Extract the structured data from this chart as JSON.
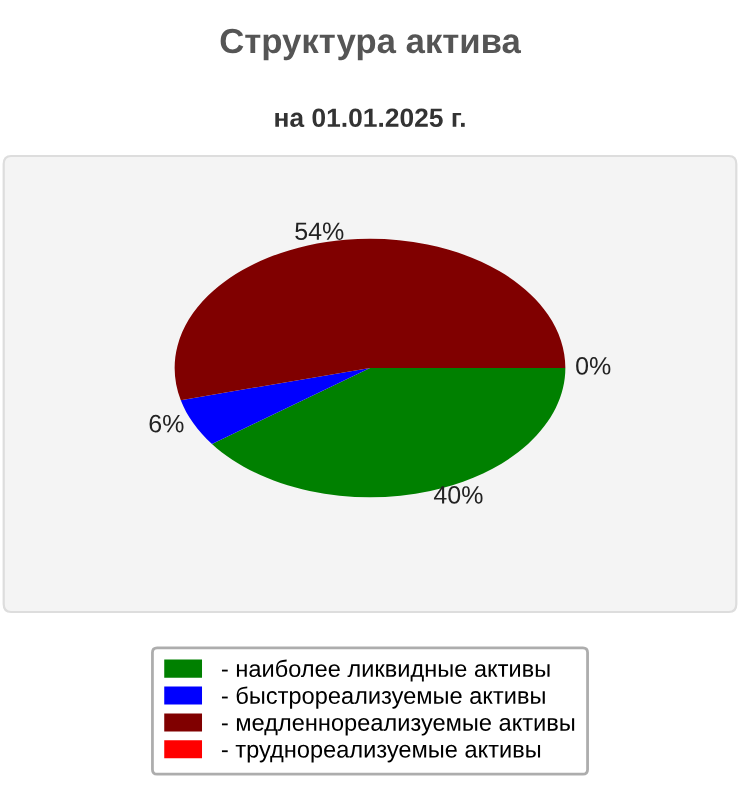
{
  "chart_data": {
    "type": "pie",
    "title": "Структура актива",
    "subtitle": "на 01.01.2025 г.",
    "categories": [
      "- наиболее ликвидные активы",
      "- быстрореализуемые активы",
      "- медленнореализуемые активы",
      "- труднореализуемые активы"
    ],
    "values": [
      40,
      6,
      54,
      0
    ],
    "colors": [
      "#008000",
      "#0000ff",
      "#800000",
      "#ff0000"
    ],
    "value_labels": [
      "40%",
      "6%",
      "54%",
      "0%"
    ],
    "legend": "bottom"
  }
}
